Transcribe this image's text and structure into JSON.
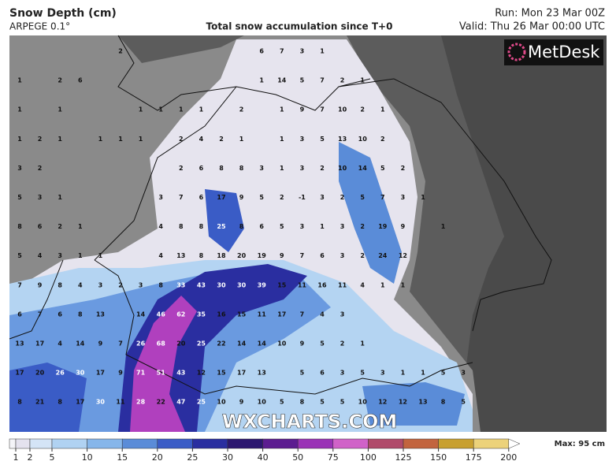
{
  "header": {
    "title": "Snow Depth (cm)",
    "model": "ARPEGE 0.1°",
    "subtitle": "Total snow accumulation since T+0",
    "run": "Run: Mon 23 Mar 00Z",
    "valid": "Valid: Thu 26 Mar 00:00 UTC"
  },
  "logo": "MetDesk",
  "watermark": "WXCHARTS.COM",
  "grid_values": [
    [
      null,
      null,
      null,
      null,
      null,
      2,
      null,
      null,
      null,
      null,
      null,
      null,
      6,
      7,
      3,
      1,
      null,
      null,
      null,
      null,
      null,
      null,
      null
    ],
    [
      1,
      null,
      2,
      6,
      null,
      null,
      null,
      null,
      null,
      null,
      null,
      null,
      1,
      14,
      5,
      7,
      2,
      1,
      null,
      null,
      null,
      null,
      null
    ],
    [
      1,
      null,
      1,
      null,
      null,
      null,
      1,
      1,
      1,
      1,
      null,
      2,
      null,
      1,
      9,
      7,
      10,
      2,
      1,
      null,
      null,
      null,
      null
    ],
    [
      1,
      2,
      1,
      null,
      1,
      1,
      1,
      null,
      2,
      4,
      2,
      1,
      null,
      1,
      3,
      5,
      13,
      10,
      2,
      null,
      null,
      null,
      null
    ],
    [
      3,
      2,
      null,
      null,
      null,
      null,
      null,
      null,
      2,
      6,
      8,
      8,
      3,
      1,
      3,
      2,
      10,
      14,
      5,
      2,
      null,
      null,
      null
    ],
    [
      5,
      3,
      1,
      null,
      null,
      null,
      null,
      3,
      7,
      6,
      17,
      9,
      5,
      2,
      -1,
      3,
      2,
      5,
      7,
      3,
      1,
      null,
      null
    ],
    [
      8,
      6,
      2,
      1,
      null,
      null,
      null,
      4,
      8,
      8,
      25,
      8,
      6,
      5,
      3,
      1,
      3,
      2,
      19,
      9,
      null,
      1,
      null
    ],
    [
      5,
      4,
      3,
      1,
      1,
      null,
      null,
      4,
      13,
      8,
      18,
      20,
      19,
      9,
      7,
      6,
      3,
      2,
      24,
      12,
      null,
      null,
      null
    ],
    [
      7,
      9,
      8,
      4,
      3,
      2,
      3,
      8,
      33,
      43,
      30,
      30,
      39,
      15,
      11,
      16,
      11,
      4,
      1,
      1,
      null,
      null,
      null
    ],
    [
      6,
      7,
      6,
      8,
      13,
      null,
      14,
      46,
      62,
      35,
      16,
      15,
      11,
      17,
      7,
      4,
      3,
      null,
      null,
      null,
      null,
      null,
      null
    ],
    [
      13,
      17,
      4,
      14,
      9,
      7,
      26,
      68,
      20,
      25,
      22,
      14,
      14,
      10,
      9,
      5,
      2,
      1,
      null,
      null,
      null,
      null,
      null
    ],
    [
      17,
      20,
      26,
      30,
      17,
      9,
      71,
      51,
      43,
      12,
      15,
      17,
      13,
      null,
      5,
      6,
      3,
      5,
      3,
      1,
      1,
      5,
      3
    ],
    [
      8,
      21,
      8,
      17,
      30,
      11,
      28,
      22,
      47,
      25,
      10,
      9,
      10,
      5,
      8,
      5,
      5,
      10,
      12,
      12,
      13,
      8,
      5
    ]
  ],
  "colorbar": {
    "ticks": [
      1,
      2,
      5,
      10,
      15,
      20,
      25,
      30,
      40,
      50,
      75,
      100,
      125,
      150,
      175,
      200
    ],
    "colors": [
      "#e4e2ee",
      "#d4e4f6",
      "#b0d2f2",
      "#86b6ea",
      "#5a8cd8",
      "#3a5cc6",
      "#2a2ea0",
      "#2c1670",
      "#5c1c90",
      "#9a32b6",
      "#d062c8",
      "#b04a6a",
      "#c2643e",
      "#c8a030",
      "#ecd27a"
    ],
    "max_label": "Max: 95 cm"
  }
}
